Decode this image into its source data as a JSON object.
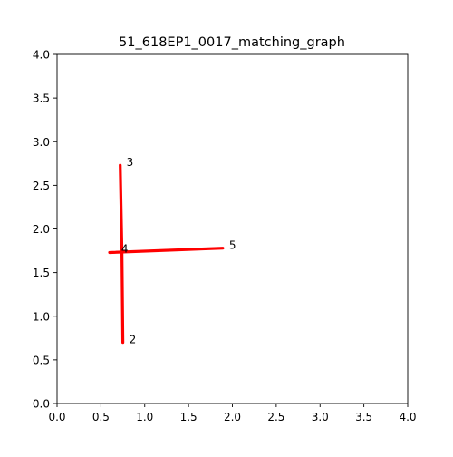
{
  "chart_data": {
    "type": "line",
    "title": "51_618EP1_0017_matching_graph",
    "xlabel": "",
    "ylabel": "",
    "xlim": [
      0.0,
      4.0
    ],
    "ylim": [
      0.0,
      4.0
    ],
    "xticks": [
      "0.0",
      "0.5",
      "1.0",
      "1.5",
      "2.0",
      "2.5",
      "3.0",
      "3.5",
      "4.0"
    ],
    "yticks": [
      "0.0",
      "0.5",
      "1.0",
      "1.5",
      "2.0",
      "2.5",
      "3.0",
      "3.5",
      "4.0"
    ],
    "grid": false,
    "line_color": "#ff0000",
    "text_color": "#000000",
    "segments": [
      {
        "x": [
          0.72,
          0.74
        ],
        "y": [
          2.73,
          1.74
        ]
      },
      {
        "x": [
          0.74,
          0.75
        ],
        "y": [
          1.74,
          0.7
        ]
      },
      {
        "x": [
          0.6,
          1.89
        ],
        "y": [
          1.73,
          1.78
        ]
      }
    ],
    "node_labels": [
      {
        "text": "3",
        "x": 0.72,
        "y": 2.73
      },
      {
        "text": "4",
        "x": 0.66,
        "y": 1.74
      },
      {
        "text": "5",
        "x": 1.89,
        "y": 1.78
      },
      {
        "text": "2",
        "x": 0.75,
        "y": 0.7
      }
    ]
  }
}
